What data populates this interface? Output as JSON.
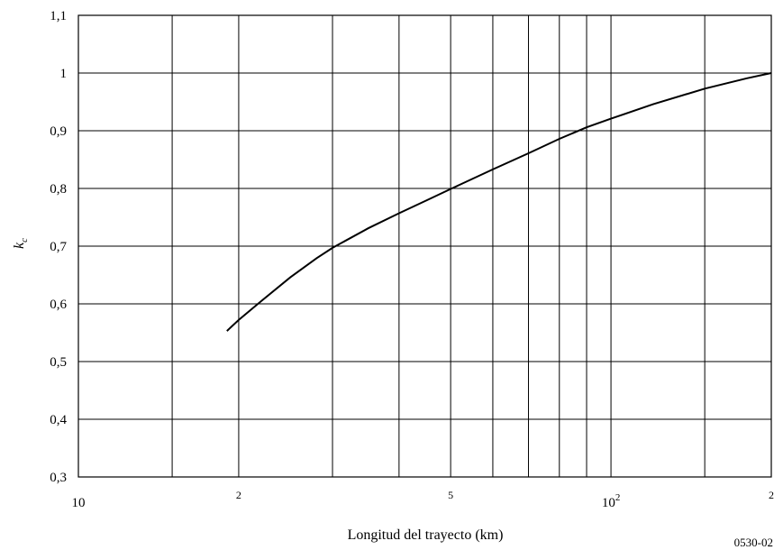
{
  "chart_data": {
    "type": "line",
    "xlabel": "Longitud del trayecto (km)",
    "ylabel": "k",
    "ylabel_subscript": "c",
    "x_scale": "log",
    "xlim": [
      10,
      200
    ],
    "ylim": [
      0.3,
      1.1
    ],
    "grid": true,
    "x_gridlines": [
      15,
      20,
      30,
      40,
      50,
      60,
      70,
      80,
      90,
      100,
      150,
      200
    ],
    "x_tick_labels": [
      {
        "x": 10,
        "text": "10",
        "size": "normal"
      },
      {
        "x": 20,
        "text": "2",
        "size": "small"
      },
      {
        "x": 50,
        "text": "5",
        "size": "small"
      },
      {
        "x": 100,
        "text": "10",
        "sup": "2",
        "size": "normal"
      },
      {
        "x": 200,
        "text": "2",
        "size": "small"
      }
    ],
    "y_ticks": [
      0.3,
      0.4,
      0.5,
      0.6,
      0.7,
      0.8,
      0.9,
      1.0,
      1.1
    ],
    "y_tick_labels": [
      "0,3",
      "0,4",
      "0,5",
      "0,6",
      "0,7",
      "0,8",
      "0,9",
      "1",
      "1,1"
    ],
    "series": [
      {
        "x": [
          19,
          20,
          22,
          25,
          28,
          30,
          35,
          40,
          45,
          50,
          60,
          70,
          80,
          90,
          100,
          120,
          150,
          180,
          200
        ],
        "y": [
          0.553,
          0.572,
          0.604,
          0.646,
          0.679,
          0.697,
          0.731,
          0.757,
          0.779,
          0.799,
          0.833,
          0.861,
          0.886,
          0.906,
          0.921,
          0.946,
          0.973,
          0.991,
          1.0
        ]
      }
    ]
  },
  "figure_code": "0530-02"
}
